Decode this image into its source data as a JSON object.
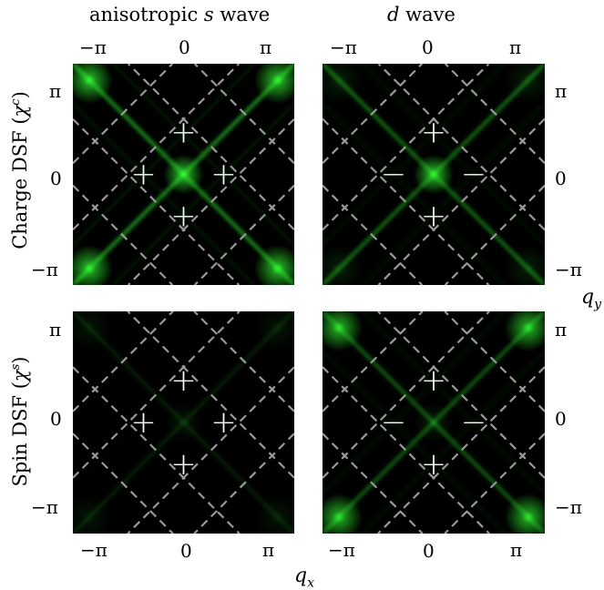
{
  "columns": [
    {
      "prefix": "anisotropic ",
      "var": "s",
      "suffix": " wave"
    },
    {
      "prefix": "",
      "var": "d",
      "suffix": " wave"
    }
  ],
  "rows": [
    {
      "prefix": "Charge DSF (",
      "sym": "χ",
      "sup": "c",
      "suffix": ")"
    },
    {
      "prefix": "Spin DSF (",
      "sym": "χ",
      "sup": "s",
      "suffix": ")"
    }
  ],
  "ticks": {
    "neg": "−π",
    "zero": "0",
    "pos": "π"
  },
  "axis": {
    "x_var": "q",
    "x_sub": "x",
    "y_var": "q",
    "y_sub": "y"
  },
  "panels": [
    {
      "id": "charge-s",
      "signs": [
        "+",
        "+",
        "+",
        "+"
      ],
      "corner_intensity": 0.95,
      "center_intensity": 0.95,
      "cross_intensity": 0.75
    },
    {
      "id": "charge-d",
      "signs": [
        "+",
        "−",
        "−",
        "+"
      ],
      "corner_intensity": 0.15,
      "center_intensity": 0.95,
      "cross_intensity": 0.55
    },
    {
      "id": "spin-s",
      "signs": [
        "+",
        "+",
        "+",
        "+"
      ],
      "corner_intensity": 0.1,
      "center_intensity": 0.1,
      "cross_intensity": 0.15
    },
    {
      "id": "spin-d",
      "signs": [
        "+",
        "−",
        "−",
        "+"
      ],
      "corner_intensity": 0.9,
      "center_intensity": 0.15,
      "cross_intensity": 0.45
    }
  ],
  "colors": {
    "glow": "#33ff33",
    "dashed": "#9a9a9a",
    "sign": "#ffffff",
    "panel_bg": "#000000"
  }
}
